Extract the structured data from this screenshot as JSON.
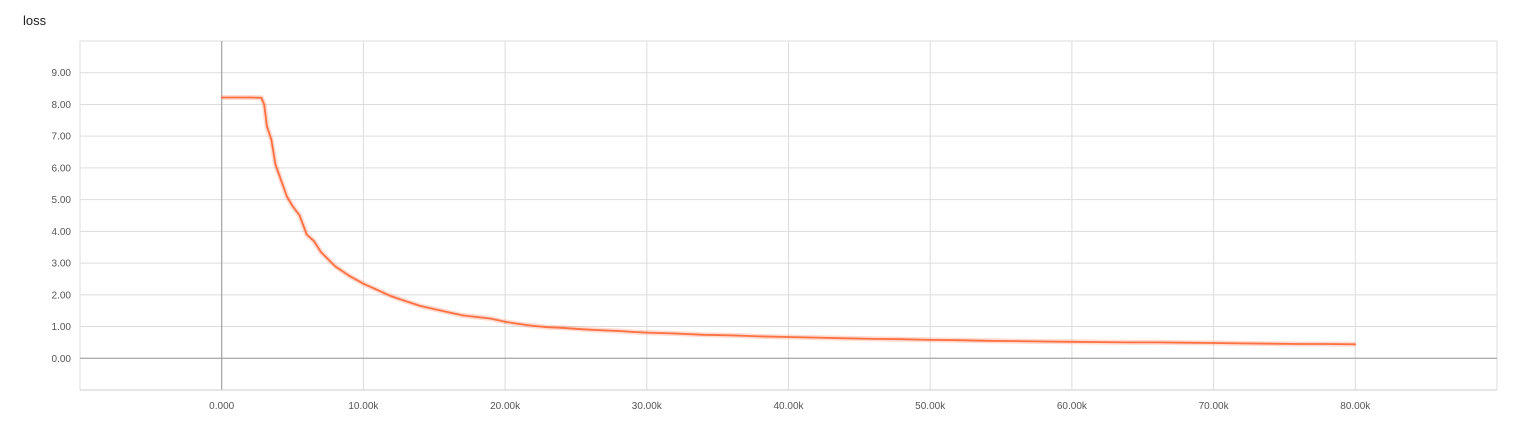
{
  "chart_data": {
    "type": "line",
    "title": "loss",
    "xlabel": "",
    "ylabel": "",
    "xlim": [
      -10000,
      90000
    ],
    "ylim": [
      -1,
      10
    ],
    "grid": true,
    "legend": "none",
    "x_ticks": [
      {
        "value": 0,
        "label": "0.000"
      },
      {
        "value": 10000,
        "label": "10.00k"
      },
      {
        "value": 20000,
        "label": "20.00k"
      },
      {
        "value": 30000,
        "label": "30.00k"
      },
      {
        "value": 40000,
        "label": "40.00k"
      },
      {
        "value": 50000,
        "label": "50.00k"
      },
      {
        "value": 60000,
        "label": "60.00k"
      },
      {
        "value": 70000,
        "label": "70.00k"
      },
      {
        "value": 80000,
        "label": "80.00k"
      }
    ],
    "y_ticks": [
      {
        "value": 0,
        "label": "0.00"
      },
      {
        "value": 1,
        "label": "1.00"
      },
      {
        "value": 2,
        "label": "2.00"
      },
      {
        "value": 3,
        "label": "3.00"
      },
      {
        "value": 4,
        "label": "4.00"
      },
      {
        "value": 5,
        "label": "5.00"
      },
      {
        "value": 6,
        "label": "6.00"
      },
      {
        "value": 7,
        "label": "7.00"
      },
      {
        "value": 8,
        "label": "8.00"
      },
      {
        "value": 9,
        "label": "9.00"
      }
    ],
    "series": [
      {
        "color": "#ff7043",
        "x": [
          0,
          1000,
          2000,
          2800,
          3000,
          3200,
          3500,
          3800,
          4200,
          4600,
          5000,
          5500,
          6000,
          6500,
          7000,
          8000,
          9000,
          10000,
          11000,
          12000,
          13000,
          14000,
          15000,
          16000,
          17000,
          18000,
          19000,
          20000,
          21000,
          22000,
          23000,
          24000,
          25000,
          26000,
          27000,
          28000,
          29000,
          30000,
          32000,
          34000,
          36000,
          38000,
          40000,
          42000,
          44000,
          46000,
          48000,
          50000,
          52000,
          54000,
          56000,
          58000,
          60000,
          62000,
          64000,
          66000,
          68000,
          70000,
          72000,
          74000,
          76000,
          78000,
          80000
        ],
        "y": [
          8.22,
          8.22,
          8.22,
          8.21,
          8.0,
          7.3,
          6.9,
          6.1,
          5.6,
          5.1,
          4.8,
          4.5,
          3.9,
          3.7,
          3.35,
          2.9,
          2.6,
          2.35,
          2.15,
          1.95,
          1.8,
          1.65,
          1.55,
          1.45,
          1.35,
          1.3,
          1.25,
          1.15,
          1.08,
          1.02,
          0.98,
          0.96,
          0.93,
          0.9,
          0.88,
          0.86,
          0.83,
          0.81,
          0.78,
          0.74,
          0.72,
          0.69,
          0.67,
          0.65,
          0.63,
          0.61,
          0.6,
          0.58,
          0.57,
          0.55,
          0.54,
          0.53,
          0.52,
          0.51,
          0.5,
          0.5,
          0.49,
          0.48,
          0.47,
          0.46,
          0.45,
          0.45,
          0.44
        ]
      }
    ]
  }
}
